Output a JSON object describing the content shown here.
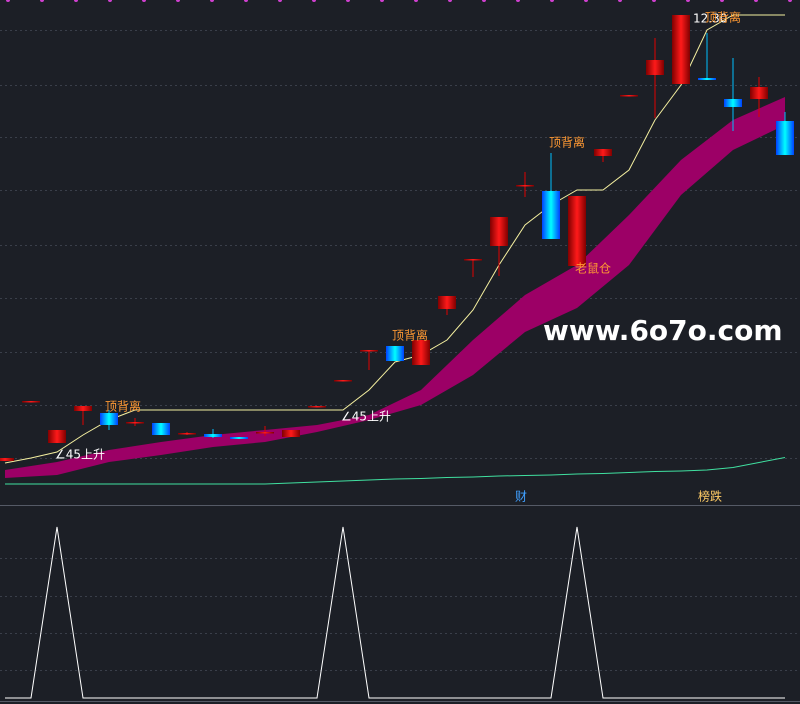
{
  "chart_data": {
    "type": "candlestick",
    "ylim": [
      2.5,
      12.6
    ],
    "open": [
      3.38,
      4.56,
      3.74,
      4.38,
      4.34,
      4.14,
      4.14,
      3.92,
      3.92,
      3.86,
      3.94,
      3.86,
      4.46,
      4.98,
      5.58,
      5.68,
      5.3,
      6.42,
      7.4,
      7.68,
      8.88,
      8.78,
      7.28,
      9.48,
      10.68,
      11.1,
      10.92,
      11.04,
      10.62,
      10.62,
      10.18
    ],
    "high": [
      3.44,
      4.58,
      4.0,
      4.48,
      4.4,
      4.24,
      4.14,
      3.96,
      4.02,
      3.86,
      4.08,
      4.0,
      4.48,
      5.0,
      5.6,
      5.68,
      5.8,
      6.68,
      7.42,
      8.26,
      9.16,
      9.54,
      8.68,
      9.62,
      10.7,
      11.84,
      12.3,
      11.94,
      11.44,
      11.06,
      10.36
    ],
    "low": [
      3.38,
      4.56,
      3.74,
      4.1,
      4.0,
      4.08,
      3.9,
      3.9,
      3.84,
      3.82,
      3.88,
      3.86,
      4.46,
      4.98,
      5.2,
      5.38,
      5.3,
      6.3,
      7.06,
      7.08,
      8.66,
      7.82,
      7.28,
      9.36,
      10.68,
      10.24,
      10.92,
      11.0,
      9.98,
      10.26,
      9.5
    ],
    "close": [
      3.44,
      4.58,
      4.0,
      4.48,
      4.1,
      4.16,
      3.9,
      3.94,
      3.86,
      3.82,
      3.96,
      4.0,
      4.48,
      5.0,
      5.6,
      5.38,
      5.8,
      6.68,
      7.42,
      8.26,
      8.9,
      7.82,
      8.68,
      9.62,
      10.7,
      11.4,
      12.3,
      11.0,
      10.46,
      10.86,
      9.5
    ],
    "up_color": "#e00000",
    "down_color": "#00bfff",
    "lines": [
      {
        "color": "#f5f0a0",
        "values": [
          3.34,
          3.44,
          3.56,
          3.9,
          4.2,
          4.4,
          4.4,
          4.4,
          4.4,
          4.4,
          4.4,
          4.4,
          4.4,
          4.4,
          4.8,
          5.36,
          5.5,
          5.8,
          6.4,
          7.3,
          8.1,
          8.5,
          8.8,
          8.8,
          9.2,
          10.2,
          10.9,
          12.0,
          12.3,
          12.3,
          12.3
        ]
      },
      {
        "color": "#40e0a0",
        "values": [
          2.92,
          2.92,
          2.92,
          2.92,
          2.92,
          2.92,
          2.92,
          2.92,
          2.92,
          2.92,
          2.92,
          2.94,
          2.96,
          2.98,
          3.0,
          3.02,
          3.03,
          3.05,
          3.06,
          3.08,
          3.09,
          3.1,
          3.12,
          3.13,
          3.15,
          3.17,
          3.18,
          3.2,
          3.25,
          3.35,
          3.45
        ]
      }
    ],
    "band": {
      "color": "#9c0066",
      "upper": [
        3.2,
        3.28,
        3.36,
        3.48,
        3.6,
        3.68,
        3.76,
        3.83,
        3.9,
        3.95,
        4.0,
        4.05,
        4.1,
        4.2,
        4.3,
        4.55,
        4.8,
        5.3,
        5.8,
        6.25,
        6.7,
        7.0,
        7.3,
        7.8,
        8.3,
        8.85,
        9.4,
        9.8,
        10.2,
        10.43,
        10.66
      ],
      "lower": [
        3.04,
        3.07,
        3.1,
        3.23,
        3.36,
        3.43,
        3.5,
        3.58,
        3.66,
        3.71,
        3.76,
        3.86,
        3.96,
        4.08,
        4.2,
        4.35,
        4.5,
        4.8,
        5.1,
        5.53,
        5.96,
        6.2,
        6.44,
        6.87,
        7.3,
        8.0,
        8.7,
        9.15,
        9.6,
        9.85,
        10.1
      ]
    },
    "max_price": {
      "value": 12.3,
      "label": "12.30"
    },
    "annotations": [
      "顶背离",
      "顶背离",
      "顶背离",
      "顶背离",
      "∠45上升",
      "∠45上升",
      "老鼠仓",
      "财",
      "榜跌"
    ],
    "watermark": "www.6o7o.com",
    "indicator": {
      "color": "#ffffff",
      "ylim": [
        0,
        1
      ],
      "values": [
        0,
        0,
        1,
        0,
        0,
        0,
        0,
        0,
        0,
        0,
        0,
        0,
        0,
        1,
        0,
        0,
        0,
        0,
        0,
        0,
        0,
        0,
        1,
        0,
        0,
        0,
        0,
        0,
        0,
        0,
        0
      ]
    }
  }
}
